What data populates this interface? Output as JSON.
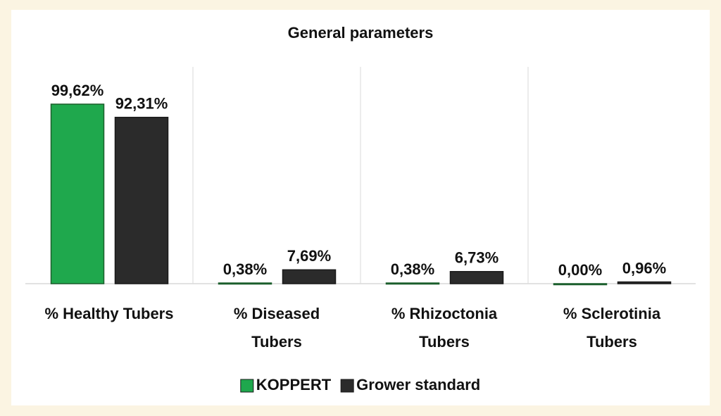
{
  "chart_data": {
    "type": "bar",
    "title": "General parameters",
    "categories": [
      "% Healthy Tubers",
      "% Diseased Tubers",
      "% Rhizoctonia Tubers",
      "% Sclerotinia Tubers"
    ],
    "series": [
      {
        "name": "KOPPERT",
        "color": "#1fa84d",
        "values": [
          99.62,
          0.38,
          0.38,
          0.0
        ],
        "value_labels": [
          "99,62%",
          "0,38%",
          "0,38%",
          "0,00%"
        ]
      },
      {
        "name": "Grower standard",
        "color": "#2b2b2b",
        "values": [
          92.31,
          7.69,
          6.73,
          0.96
        ],
        "value_labels": [
          "92,31%",
          "7,69%",
          "6,73%",
          "0,96%"
        ]
      }
    ],
    "ylim": [
      0,
      100
    ],
    "legend": "bottom"
  }
}
